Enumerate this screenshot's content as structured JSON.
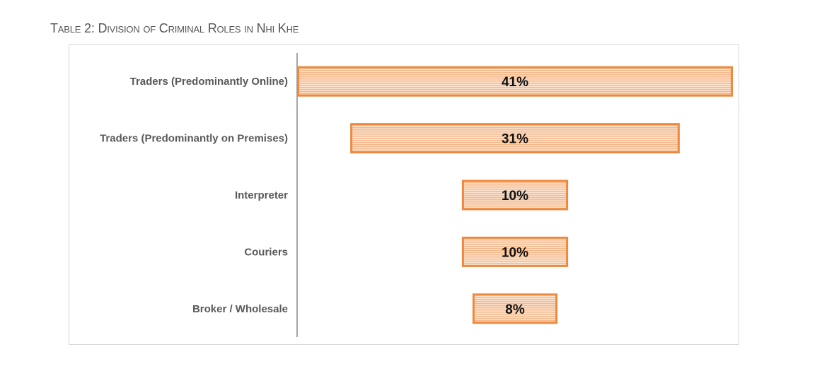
{
  "caption": "Table 2: Division of Criminal Roles in Nhi Khe",
  "colors": {
    "bar_fill": "#f8c9a4",
    "bar_stroke": "#ed8a3f",
    "axis": "#a6a6a6",
    "frame": "#d9d9d9"
  },
  "chart_data": {
    "type": "bar",
    "orientation": "horizontal",
    "layout": "funnel",
    "title": "Table 2: Division of Criminal Roles in Nhi Khe",
    "xlabel": "",
    "ylabel": "",
    "unit": "%",
    "grid": false,
    "legend": "none",
    "xlim": [
      0,
      41
    ],
    "categories": [
      "Traders (Predominantly Online)",
      "Traders (Predominantly on Premises)",
      "Interpreter",
      "Couriers",
      "Broker / Wholesale"
    ],
    "values": [
      41,
      31,
      10,
      10,
      8
    ],
    "data_labels": [
      "41%",
      "31%",
      "10%",
      "10%",
      "8%"
    ]
  }
}
